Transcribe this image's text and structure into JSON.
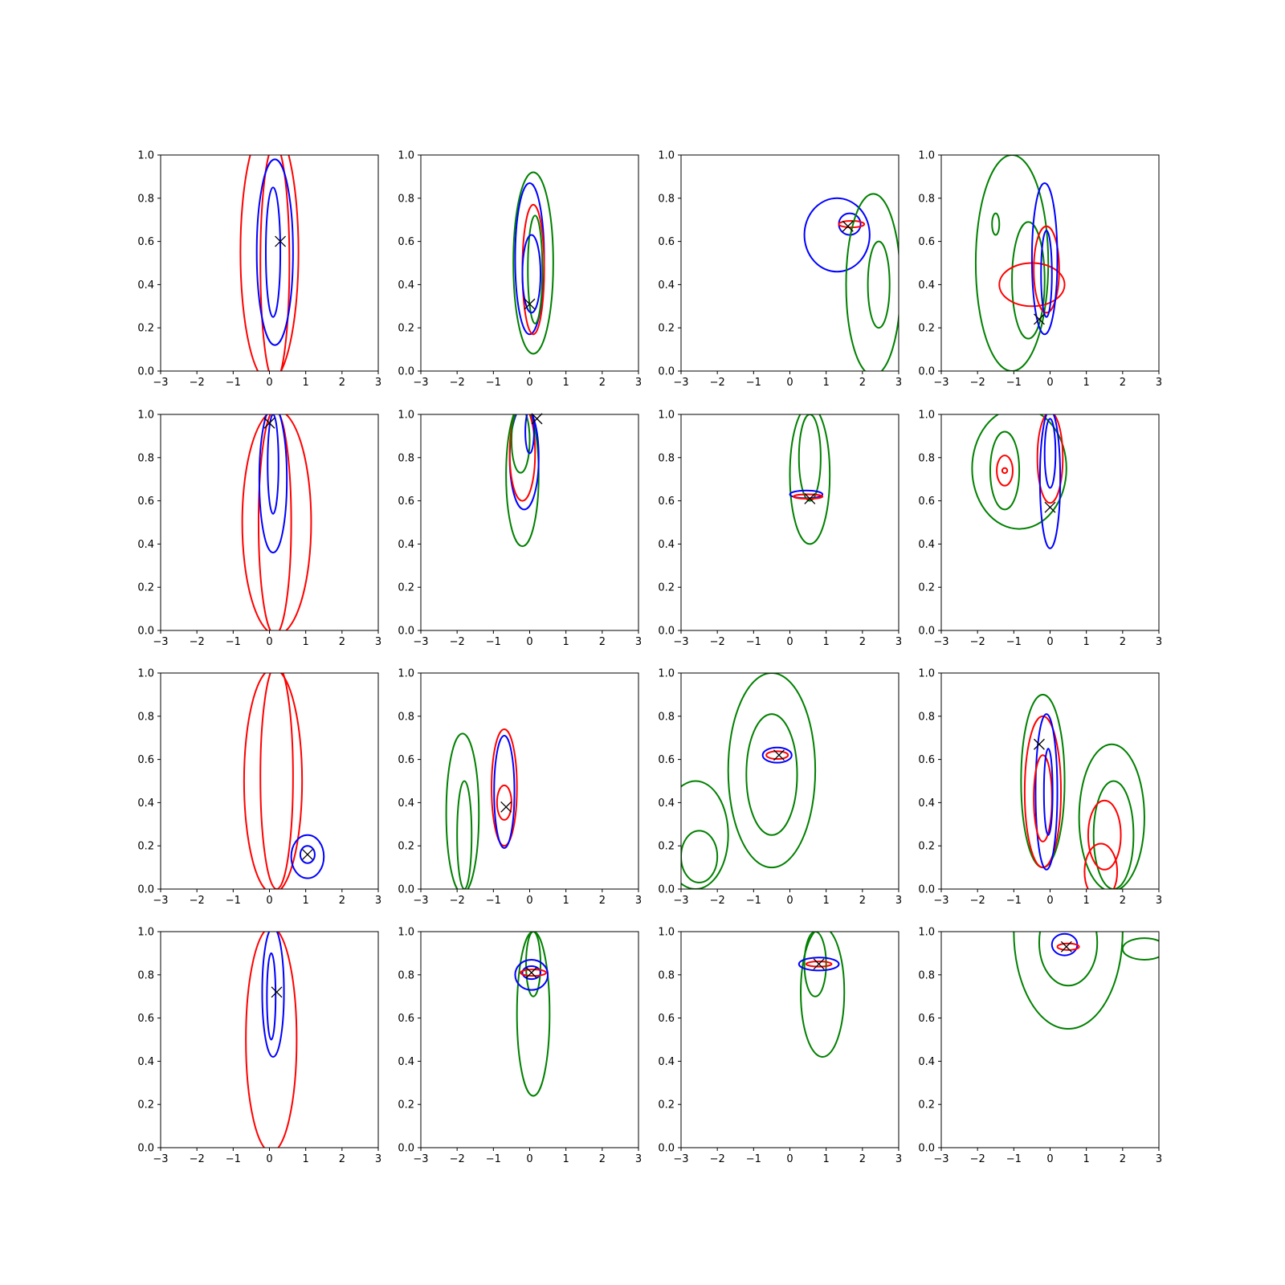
{
  "colors": {
    "red": "#ff0000",
    "blue": "#0000ff",
    "green": "#008000",
    "marker": "#000000"
  },
  "chart_data": {
    "type": "contour",
    "grid": false,
    "xlim": [
      -3,
      3
    ],
    "ylim": [
      0,
      1
    ],
    "xticks": [
      "−3",
      "−2",
      "−1",
      "0",
      "1",
      "2",
      "3"
    ],
    "yticks": [
      "0.0",
      "0.2",
      "0.4",
      "0.6",
      "0.8",
      "1.0"
    ],
    "panels": [
      {
        "marker": [
          0.3,
          0.6
        ],
        "contours": [
          {
            "color": "red",
            "cx": 0.0,
            "cy": 0.55,
            "rx": 0.8,
            "ry": 0.6
          },
          {
            "color": "red",
            "cx": 0.15,
            "cy": 0.5,
            "rx": 0.4,
            "ry": 0.55
          },
          {
            "color": "blue",
            "cx": 0.15,
            "cy": 0.55,
            "rx": 0.5,
            "ry": 0.43
          },
          {
            "color": "blue",
            "cx": 0.1,
            "cy": 0.55,
            "rx": 0.2,
            "ry": 0.3
          }
        ]
      },
      {
        "marker": [
          0.0,
          0.31
        ],
        "contours": [
          {
            "color": "green",
            "cx": 0.1,
            "cy": 0.5,
            "rx": 0.55,
            "ry": 0.42
          },
          {
            "color": "blue",
            "cx": 0.0,
            "cy": 0.52,
            "rx": 0.4,
            "ry": 0.35
          },
          {
            "color": "red",
            "cx": 0.1,
            "cy": 0.47,
            "rx": 0.3,
            "ry": 0.3
          },
          {
            "color": "green",
            "cx": 0.15,
            "cy": 0.47,
            "rx": 0.2,
            "ry": 0.25
          },
          {
            "color": "blue",
            "cx": 0.05,
            "cy": 0.45,
            "rx": 0.25,
            "ry": 0.18
          }
        ]
      },
      {
        "marker": [
          1.6,
          0.67
        ],
        "contours": [
          {
            "color": "blue",
            "cx": 1.3,
            "cy": 0.63,
            "rx": 0.9,
            "ry": 0.17
          },
          {
            "color": "blue",
            "cx": 1.65,
            "cy": 0.68,
            "rx": 0.3,
            "ry": 0.05
          },
          {
            "color": "red",
            "cx": 1.7,
            "cy": 0.68,
            "rx": 0.35,
            "ry": 0.015
          },
          {
            "color": "green",
            "cx": 2.3,
            "cy": 0.4,
            "rx": 0.75,
            "ry": 0.42
          },
          {
            "color": "green",
            "cx": 2.45,
            "cy": 0.4,
            "rx": 0.3,
            "ry": 0.2
          }
        ]
      },
      {
        "marker": [
          -0.3,
          0.24
        ],
        "contours": [
          {
            "color": "green",
            "cx": -1.05,
            "cy": 0.5,
            "rx": 1.0,
            "ry": 0.5
          },
          {
            "color": "green",
            "cx": -0.6,
            "cy": 0.42,
            "rx": 0.45,
            "ry": 0.27
          },
          {
            "color": "green",
            "cx": -1.5,
            "cy": 0.68,
            "rx": 0.1,
            "ry": 0.05
          },
          {
            "color": "red",
            "cx": -0.5,
            "cy": 0.4,
            "rx": 0.9,
            "ry": 0.1
          },
          {
            "color": "red",
            "cx": -0.1,
            "cy": 0.47,
            "rx": 0.35,
            "ry": 0.2
          },
          {
            "color": "blue",
            "cx": -0.15,
            "cy": 0.52,
            "rx": 0.35,
            "ry": 0.35
          },
          {
            "color": "blue",
            "cx": -0.1,
            "cy": 0.45,
            "rx": 0.15,
            "ry": 0.2
          }
        ]
      },
      {
        "marker": [
          0.0,
          0.96
        ],
        "contours": [
          {
            "color": "red",
            "cx": 0.2,
            "cy": 0.5,
            "rx": 0.95,
            "ry": 0.52
          },
          {
            "color": "red",
            "cx": 0.15,
            "cy": 0.5,
            "rx": 0.45,
            "ry": 0.52
          },
          {
            "color": "blue",
            "cx": 0.1,
            "cy": 0.7,
            "rx": 0.38,
            "ry": 0.34
          },
          {
            "color": "blue",
            "cx": 0.1,
            "cy": 0.77,
            "rx": 0.15,
            "ry": 0.23
          }
        ]
      },
      {
        "marker": [
          0.2,
          0.98
        ],
        "contours": [
          {
            "color": "green",
            "cx": -0.2,
            "cy": 0.72,
            "rx": 0.45,
            "ry": 0.33
          },
          {
            "color": "blue",
            "cx": -0.15,
            "cy": 0.8,
            "rx": 0.4,
            "ry": 0.24
          },
          {
            "color": "red",
            "cx": -0.2,
            "cy": 0.82,
            "rx": 0.35,
            "ry": 0.22
          },
          {
            "color": "green",
            "cx": -0.25,
            "cy": 0.88,
            "rx": 0.25,
            "ry": 0.15
          },
          {
            "color": "blue",
            "cx": 0.0,
            "cy": 0.92,
            "rx": 0.12,
            "ry": 0.1
          }
        ]
      },
      {
        "marker": [
          0.55,
          0.61
        ],
        "contours": [
          {
            "color": "green",
            "cx": 0.55,
            "cy": 0.72,
            "rx": 0.55,
            "ry": 0.32
          },
          {
            "color": "green",
            "cx": 0.55,
            "cy": 0.8,
            "rx": 0.3,
            "ry": 0.2
          },
          {
            "color": "blue",
            "cx": 0.45,
            "cy": 0.63,
            "rx": 0.45,
            "ry": 0.018
          },
          {
            "color": "red",
            "cx": 0.5,
            "cy": 0.62,
            "rx": 0.4,
            "ry": 0.01
          }
        ]
      },
      {
        "marker": [
          0.0,
          0.57
        ],
        "contours": [
          {
            "color": "green",
            "cx": -0.85,
            "cy": 0.75,
            "rx": 1.3,
            "ry": 0.28
          },
          {
            "color": "green",
            "cx": -1.25,
            "cy": 0.74,
            "rx": 0.4,
            "ry": 0.18
          },
          {
            "color": "red",
            "cx": -1.25,
            "cy": 0.74,
            "rx": 0.22,
            "ry": 0.07
          },
          {
            "color": "red",
            "cx": -1.25,
            "cy": 0.74,
            "rx": 0.07,
            "ry": 0.012
          },
          {
            "color": "red",
            "cx": 0.0,
            "cy": 0.8,
            "rx": 0.35,
            "ry": 0.21
          },
          {
            "color": "blue",
            "cx": 0.0,
            "cy": 0.7,
            "rx": 0.28,
            "ry": 0.32
          },
          {
            "color": "blue",
            "cx": 0.0,
            "cy": 0.82,
            "rx": 0.15,
            "ry": 0.16
          }
        ]
      },
      {
        "marker": [
          1.05,
          0.16
        ],
        "contours": [
          {
            "color": "red",
            "cx": 0.1,
            "cy": 0.5,
            "rx": 0.8,
            "ry": 0.52
          },
          {
            "color": "red",
            "cx": 0.2,
            "cy": 0.52,
            "rx": 0.45,
            "ry": 0.52
          },
          {
            "color": "blue",
            "cx": 1.05,
            "cy": 0.15,
            "rx": 0.45,
            "ry": 0.1
          },
          {
            "color": "blue",
            "cx": 1.05,
            "cy": 0.16,
            "rx": 0.2,
            "ry": 0.04
          }
        ]
      },
      {
        "marker": [
          -0.65,
          0.38
        ],
        "contours": [
          {
            "color": "green",
            "cx": -1.85,
            "cy": 0.35,
            "rx": 0.45,
            "ry": 0.37
          },
          {
            "color": "green",
            "cx": -1.8,
            "cy": 0.25,
            "rx": 0.2,
            "ry": 0.25
          },
          {
            "color": "red",
            "cx": -0.7,
            "cy": 0.47,
            "rx": 0.35,
            "ry": 0.27
          },
          {
            "color": "blue",
            "cx": -0.7,
            "cy": 0.45,
            "rx": 0.28,
            "ry": 0.26
          },
          {
            "color": "red",
            "cx": -0.7,
            "cy": 0.4,
            "rx": 0.2,
            "ry": 0.08
          }
        ]
      },
      {
        "marker": [
          -0.3,
          0.62
        ],
        "contours": [
          {
            "color": "green",
            "cx": -0.5,
            "cy": 0.55,
            "rx": 1.2,
            "ry": 0.45
          },
          {
            "color": "green",
            "cx": -0.5,
            "cy": 0.53,
            "rx": 0.7,
            "ry": 0.28
          },
          {
            "color": "green",
            "cx": -2.6,
            "cy": 0.25,
            "rx": 0.9,
            "ry": 0.25
          },
          {
            "color": "green",
            "cx": -2.5,
            "cy": 0.15,
            "rx": 0.5,
            "ry": 0.12
          },
          {
            "color": "blue",
            "cx": -0.35,
            "cy": 0.62,
            "rx": 0.4,
            "ry": 0.035
          },
          {
            "color": "red",
            "cx": -0.35,
            "cy": 0.62,
            "rx": 0.3,
            "ry": 0.018
          }
        ]
      },
      {
        "marker": [
          -0.3,
          0.67
        ],
        "contours": [
          {
            "color": "green",
            "cx": -0.2,
            "cy": 0.5,
            "rx": 0.6,
            "ry": 0.4
          },
          {
            "color": "red",
            "cx": -0.2,
            "cy": 0.45,
            "rx": 0.5,
            "ry": 0.35
          },
          {
            "color": "blue",
            "cx": -0.1,
            "cy": 0.45,
            "rx": 0.3,
            "ry": 0.36
          },
          {
            "color": "red",
            "cx": -0.2,
            "cy": 0.42,
            "rx": 0.25,
            "ry": 0.2
          },
          {
            "color": "blue",
            "cx": -0.05,
            "cy": 0.45,
            "rx": 0.12,
            "ry": 0.2
          },
          {
            "color": "green",
            "cx": 1.7,
            "cy": 0.33,
            "rx": 0.9,
            "ry": 0.34
          },
          {
            "color": "green",
            "cx": 1.75,
            "cy": 0.25,
            "rx": 0.55,
            "ry": 0.25
          },
          {
            "color": "red",
            "cx": 1.5,
            "cy": 0.25,
            "rx": 0.45,
            "ry": 0.16
          },
          {
            "color": "red",
            "cx": 1.4,
            "cy": 0.08,
            "rx": 0.45,
            "ry": 0.13
          }
        ]
      },
      {
        "marker": [
          0.2,
          0.72
        ],
        "contours": [
          {
            "color": "red",
            "cx": 0.05,
            "cy": 0.5,
            "rx": 0.7,
            "ry": 0.52
          },
          {
            "color": "blue",
            "cx": 0.1,
            "cy": 0.72,
            "rx": 0.3,
            "ry": 0.3
          },
          {
            "color": "blue",
            "cx": 0.05,
            "cy": 0.7,
            "rx": 0.12,
            "ry": 0.2
          }
        ]
      },
      {
        "marker": [
          0.05,
          0.81
        ],
        "contours": [
          {
            "color": "green",
            "cx": 0.1,
            "cy": 0.62,
            "rx": 0.45,
            "ry": 0.38
          },
          {
            "color": "green",
            "cx": 0.1,
            "cy": 0.85,
            "rx": 0.2,
            "ry": 0.15
          },
          {
            "color": "blue",
            "cx": 0.05,
            "cy": 0.8,
            "rx": 0.45,
            "ry": 0.07
          },
          {
            "color": "blue",
            "cx": 0.05,
            "cy": 0.81,
            "rx": 0.25,
            "ry": 0.03
          },
          {
            "color": "red",
            "cx": 0.1,
            "cy": 0.81,
            "rx": 0.35,
            "ry": 0.015
          }
        ]
      },
      {
        "marker": [
          0.8,
          0.85
        ],
        "contours": [
          {
            "color": "green",
            "cx": 0.9,
            "cy": 0.72,
            "rx": 0.6,
            "ry": 0.3
          },
          {
            "color": "green",
            "cx": 0.7,
            "cy": 0.85,
            "rx": 0.3,
            "ry": 0.15
          },
          {
            "color": "blue",
            "cx": 0.8,
            "cy": 0.85,
            "rx": 0.55,
            "ry": 0.03
          },
          {
            "color": "red",
            "cx": 0.8,
            "cy": 0.85,
            "rx": 0.35,
            "ry": 0.012
          }
        ]
      },
      {
        "marker": [
          0.45,
          0.93
        ],
        "contours": [
          {
            "color": "green",
            "cx": 0.5,
            "cy": 1.0,
            "rx": 1.5,
            "ry": 0.45
          },
          {
            "color": "green",
            "cx": 0.5,
            "cy": 0.95,
            "rx": 0.8,
            "ry": 0.2
          },
          {
            "color": "green",
            "cx": 2.6,
            "cy": 0.92,
            "rx": 0.6,
            "ry": 0.05
          },
          {
            "color": "blue",
            "cx": 0.4,
            "cy": 0.94,
            "rx": 0.35,
            "ry": 0.05
          },
          {
            "color": "red",
            "cx": 0.5,
            "cy": 0.93,
            "rx": 0.3,
            "ry": 0.015
          }
        ]
      }
    ]
  }
}
